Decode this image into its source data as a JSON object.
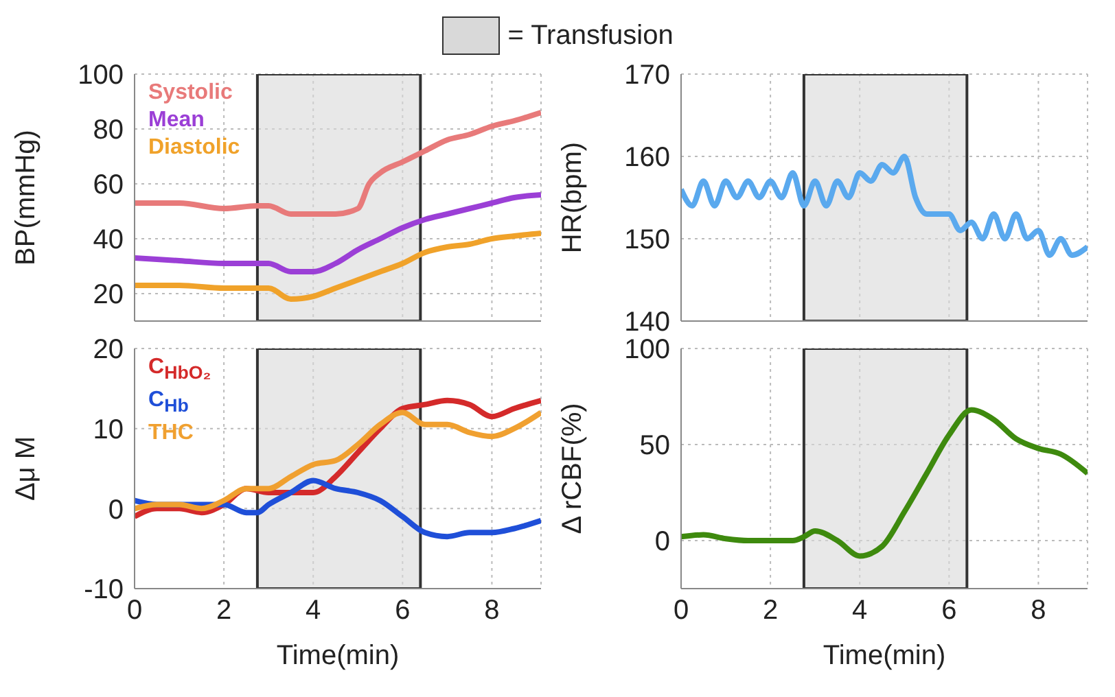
{
  "chart_data": [
    {
      "type": "line",
      "ylabel": "BP(mmHg)",
      "xlim": [
        0,
        9.1
      ],
      "xticks": [
        0,
        2,
        4,
        6,
        8
      ],
      "ylim": [
        10,
        100
      ],
      "yticks": [
        20,
        40,
        60,
        80,
        100
      ],
      "tick_labels": "y",
      "grid": true,
      "line_style": "solid",
      "bands": [
        {
          "axis": "x",
          "from": 2.75,
          "to": 6.4,
          "label": "= Transfusion",
          "color": "#d9d9d9"
        }
      ],
      "series": [
        {
          "name": "Systolic",
          "color": "#e87a7a",
          "x": [
            0,
            1,
            2,
            2.75,
            3,
            3.5,
            4,
            4.5,
            5,
            5.25,
            5.5,
            6,
            6.5,
            7,
            7.5,
            8,
            8.5,
            9.1
          ],
          "values": [
            53,
            53,
            51,
            52,
            52,
            49,
            49,
            49,
            51,
            60,
            64,
            68,
            72,
            76,
            78,
            81,
            83,
            86
          ]
        },
        {
          "name": "Mean",
          "color": "#9b3fd6",
          "x": [
            0,
            1,
            2,
            2.75,
            3,
            3.5,
            4,
            4.5,
            5,
            5.5,
            6,
            6.5,
            7,
            7.5,
            8,
            8.5,
            9.1
          ],
          "values": [
            33,
            32,
            31,
            31,
            31,
            28,
            28,
            31,
            36,
            40,
            44,
            47,
            49,
            51,
            53,
            55,
            56
          ]
        },
        {
          "name": "Diastolic",
          "color": "#f0a22a",
          "x": [
            0,
            1,
            2,
            2.75,
            3,
            3.5,
            4,
            4.5,
            5,
            5.5,
            6,
            6.5,
            7,
            7.5,
            8,
            8.5,
            9.1
          ],
          "values": [
            23,
            23,
            22,
            22,
            22,
            18,
            19,
            22,
            25,
            28,
            31,
            35,
            37,
            38,
            40,
            41,
            42
          ]
        }
      ]
    },
    {
      "type": "line",
      "ylabel": "HR(bpm)",
      "xlim": [
        0,
        9.1
      ],
      "xticks": [
        0,
        2,
        4,
        6,
        8
      ],
      "ylim": [
        140,
        170
      ],
      "yticks": [
        140,
        150,
        160,
        170
      ],
      "tick_labels": "y",
      "grid": true,
      "line_style": "solid",
      "bands": [
        {
          "axis": "x",
          "from": 2.75,
          "to": 6.4,
          "color": "#d9d9d9"
        }
      ],
      "series": [
        {
          "color": "#5aa9ee",
          "x": [
            0,
            0.25,
            0.5,
            0.75,
            1,
            1.25,
            1.5,
            1.75,
            2,
            2.25,
            2.5,
            2.75,
            3,
            3.25,
            3.5,
            3.75,
            4,
            4.25,
            4.5,
            4.75,
            5,
            5.25,
            5.5,
            5.75,
            6,
            6.25,
            6.5,
            6.75,
            7,
            7.25,
            7.5,
            7.75,
            8,
            8.25,
            8.5,
            8.75,
            9.1
          ],
          "values": [
            156,
            154,
            157,
            154,
            157,
            155,
            157,
            155,
            157,
            155,
            158,
            154,
            157,
            154,
            157,
            155,
            158,
            157,
            159,
            158,
            160,
            155,
            153,
            153,
            153,
            151,
            152,
            150,
            153,
            150,
            153,
            150,
            151,
            148,
            150,
            148,
            149
          ]
        }
      ]
    },
    {
      "type": "line",
      "ylabel": "Δμ M",
      "xlabel": "Time(min)",
      "xlim": [
        0,
        9.1
      ],
      "xticks": [
        0,
        2,
        4,
        6,
        8
      ],
      "ylim": [
        -10,
        20
      ],
      "yticks": [
        -10,
        0,
        10,
        20
      ],
      "grid": true,
      "line_style": "solid",
      "bands": [
        {
          "axis": "x",
          "from": 2.75,
          "to": 6.4,
          "color": "#d9d9d9"
        }
      ],
      "series": [
        {
          "name": "C$_{HbO₂}$",
          "color": "#d42a2a",
          "x": [
            0,
            0.5,
            1,
            1.5,
            2,
            2.5,
            3,
            3.5,
            4,
            4.5,
            5,
            5.5,
            6,
            6.5,
            7,
            7.5,
            8,
            8.5,
            9.1
          ],
          "values": [
            -1,
            0,
            0,
            -0.5,
            0.5,
            2.5,
            2,
            2,
            2,
            4,
            7,
            10,
            12.5,
            13,
            13.5,
            13,
            11.5,
            12.5,
            13.5
          ]
        },
        {
          "name": "C$_{Hb}$",
          "color": "#1f4fd8",
          "x": [
            0,
            0.5,
            1,
            1.5,
            2,
            2.5,
            2.75,
            3,
            3.5,
            4,
            4.5,
            5,
            5.5,
            6,
            6.5,
            7,
            7.5,
            8,
            8.5,
            9.1
          ],
          "values": [
            1,
            0.5,
            0.5,
            0.5,
            0.5,
            -0.5,
            -0.5,
            0.5,
            2,
            3.5,
            2.5,
            2,
            1,
            -1,
            -3,
            -3.5,
            -3,
            -3,
            -2.5,
            -1.5
          ]
        },
        {
          "name": "THC",
          "color": "#f0a030",
          "x": [
            0,
            0.5,
            1,
            1.5,
            2,
            2.5,
            3,
            3.5,
            4,
            4.5,
            5,
            5.5,
            6,
            6.5,
            7,
            7.5,
            8,
            8.5,
            9.1
          ],
          "values": [
            0,
            0.5,
            0.5,
            0,
            1,
            2.5,
            2.5,
            4,
            5.5,
            6,
            8,
            10.5,
            12,
            10.5,
            10.5,
            9.5,
            9,
            10,
            12
          ]
        }
      ]
    },
    {
      "type": "line",
      "ylabel": "Δ rCBF(%)",
      "xlabel": "Time(min)",
      "xlim": [
        0,
        9.1
      ],
      "xticks": [
        0,
        2,
        4,
        6,
        8
      ],
      "ylim": [
        -25,
        100
      ],
      "yticks": [
        0,
        50,
        100
      ],
      "grid": true,
      "line_style": "solid",
      "bands": [
        {
          "axis": "x",
          "from": 2.75,
          "to": 6.4,
          "color": "#d9d9d9"
        }
      ],
      "series": [
        {
          "color": "#3e8a0e",
          "x": [
            0,
            0.5,
            1,
            1.5,
            2,
            2.5,
            2.75,
            3,
            3.5,
            4,
            4.5,
            5,
            5.5,
            6,
            6.5,
            7,
            7.5,
            8,
            8.5,
            9.1
          ],
          "values": [
            2,
            3,
            1,
            0,
            0,
            0,
            2,
            5,
            0,
            -8,
            -3,
            15,
            35,
            55,
            68,
            63,
            53,
            48,
            45,
            35
          ]
        }
      ]
    }
  ]
}
